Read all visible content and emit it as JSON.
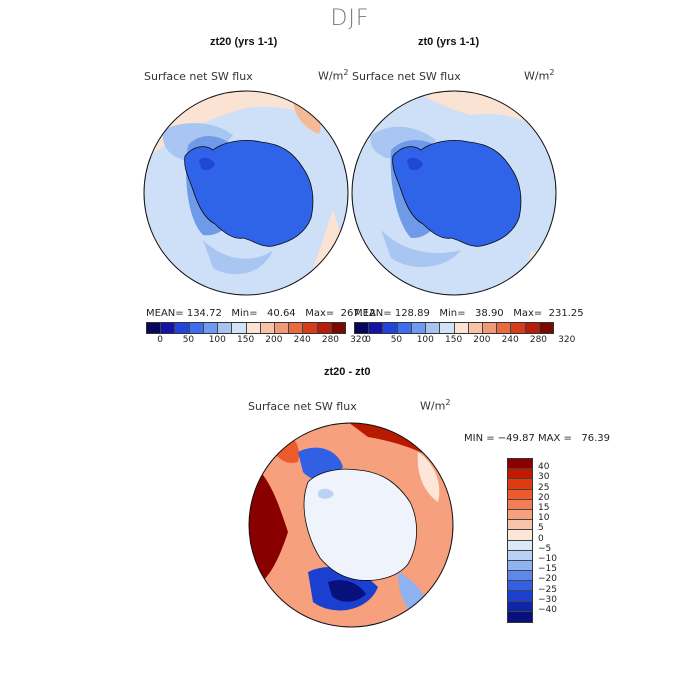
{
  "figure": {
    "season": "DJF",
    "top_left": {
      "title": "zt20 (yrs 1-1)",
      "variable": "Surface net SW flux",
      "units": "W/m",
      "mean": "MEAN= 134.72",
      "min": "Min=   40.64",
      "max": "Max=  267.12"
    },
    "top_right": {
      "title": "zt0 (yrs 1-1)",
      "variable": "Surface net SW flux",
      "units": "W/m",
      "mean": "MEAN= 128.89",
      "min": "Min=   38.90",
      "max": "Max=  231.25"
    },
    "bottom": {
      "title": "zt20 - zt0",
      "variable": "Surface net SW flux",
      "units": "W/m",
      "minmax": "MIN = −49.87 MAX =   76.39"
    },
    "units_exponent": "2"
  },
  "colorbar_abs": {
    "ticks": [
      "0",
      "50",
      "100",
      "150",
      "200",
      "240",
      "280",
      "320"
    ],
    "colors": [
      "#06065a",
      "#1414a6",
      "#2244dd",
      "#3e6ef0",
      "#6f9af2",
      "#a7c3f3",
      "#d2e2f7",
      "#fbe3d4",
      "#f8c4a8",
      "#f29a76",
      "#ea6a40",
      "#d83c1b",
      "#b41e0a",
      "#7a0a00"
    ]
  },
  "colorbar_diff": {
    "ticks": [
      "40",
      "30",
      "25",
      "20",
      "15",
      "10",
      "5",
      "0",
      "−5",
      "−10",
      "−15",
      "−20",
      "−25",
      "−30",
      "−40"
    ],
    "colors": [
      "#8a0000",
      "#c11a00",
      "#e03a10",
      "#ef5a2c",
      "#f37d55",
      "#f6a07d",
      "#f8c5aa",
      "#fbe6d8",
      "#dbe8f8",
      "#b8d1f5",
      "#8fb2f1",
      "#5f88ec",
      "#3160e4",
      "#1b3fcf",
      "#0f25a8",
      "#08107c"
    ]
  },
  "map_colors": {
    "ocean_light": "#cde0f7",
    "ocean_mid": "#a9c6f2",
    "ocean_blue": "#6f9ae8",
    "antarctica": "#2f63e8",
    "antarctica_dark": "#1e48d6",
    "warm_light": "#fbe3d4",
    "warm_mid": "#f5b995",
    "diff_red": "#b81a00",
    "diff_darkred": "#8a0000",
    "diff_center": "#eef3fc"
  }
}
